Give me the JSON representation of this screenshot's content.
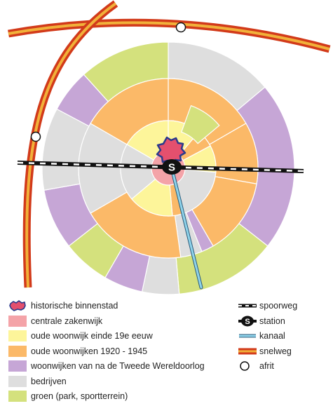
{
  "legend": {
    "left": [
      {
        "key": "historic",
        "label": "historische binnenstad",
        "color": "#e4506e"
      },
      {
        "key": "cbd",
        "label": "centrale zakenwijk",
        "color": "#f4a3a8"
      },
      {
        "key": "old19",
        "label": "oude woonwijk einde 19e eeuw",
        "color": "#fdf59a"
      },
      {
        "key": "old1920",
        "label": "oude woonwijken 1920 - 1945",
        "color": "#fbb968"
      },
      {
        "key": "postwar",
        "label": "woonwijken van na de Tweede Wereldoorlog",
        "color": "#c6a6d6"
      },
      {
        "key": "industry",
        "label": "bedrijven",
        "color": "#dedede"
      },
      {
        "key": "green",
        "label": "groen (park, sportterrein)",
        "color": "#d4e17d"
      }
    ],
    "right": [
      {
        "key": "railway",
        "label": "spoorweg",
        "icon": "railway-icon"
      },
      {
        "key": "station",
        "label": "station",
        "icon": "station-icon"
      },
      {
        "key": "canal",
        "label": "kanaal",
        "icon": "canal-icon",
        "color": "#8fd3ea"
      },
      {
        "key": "highway",
        "label": "snelweg",
        "icon": "highway-icon",
        "color": "#e8a13a"
      },
      {
        "key": "exit",
        "label": "afrit",
        "icon": "exit-icon"
      }
    ]
  },
  "map": {
    "station_letter": "S"
  }
}
